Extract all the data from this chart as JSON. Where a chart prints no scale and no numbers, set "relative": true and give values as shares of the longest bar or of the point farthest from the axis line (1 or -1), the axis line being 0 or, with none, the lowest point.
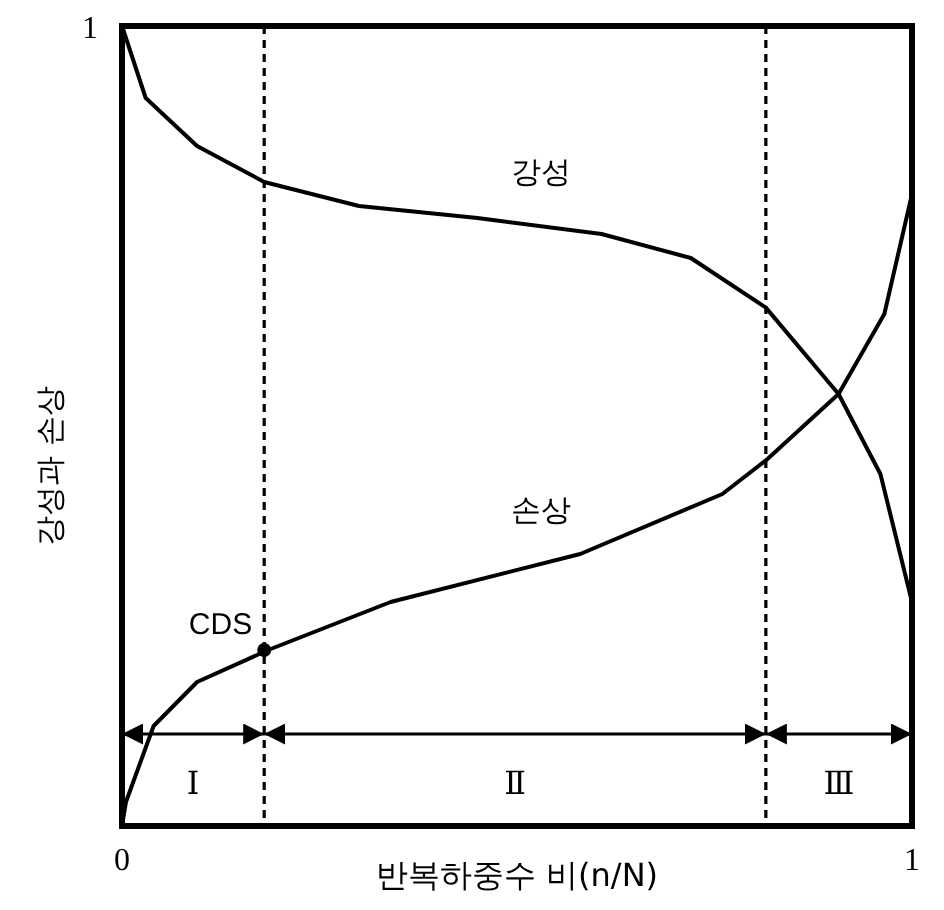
{
  "chart_data": {
    "type": "line",
    "xlabel": "반복하중수 비(n/N)",
    "ylabel": "강성과 손상",
    "xlim": [
      0,
      1
    ],
    "relative": true,
    "xticks": [
      {
        "value": 0,
        "label": "0"
      },
      {
        "value": 1,
        "label": "1"
      }
    ],
    "marker": "none",
    "line_style": "solid",
    "series": [
      {
        "name": "강성",
        "color": "#000000",
        "x": [
          0,
          0.03,
          0.095,
          0.18,
          0.3,
          0.45,
          0.607,
          0.72,
          0.815,
          0.907,
          0.96,
          1
        ],
        "values": [
          1,
          0.91,
          0.85,
          0.805,
          0.775,
          0.76,
          0.74,
          0.71,
          0.648,
          0.54,
          0.44,
          0.28
        ]
      },
      {
        "name": "손상",
        "color": "#000000",
        "x": [
          0,
          0.005,
          0.04,
          0.095,
          0.185,
          0.34,
          0.58,
          0.76,
          0.815,
          0.907,
          0.965,
          0.993,
          1
        ],
        "values": [
          0,
          0.03,
          0.125,
          0.18,
          0.22,
          0.28,
          0.34,
          0.415,
          0.457,
          0.54,
          0.64,
          0.76,
          0.79
        ]
      }
    ],
    "ref_lines": [
      {
        "axis": "x",
        "value": 0.18,
        "line_style": "dashed"
      },
      {
        "axis": "x",
        "value": 0.815,
        "line_style": "dashed"
      }
    ],
    "annotations": [
      "1",
      "Ⅰ",
      "Ⅱ",
      "Ⅲ",
      {
        "text": "CDS",
        "x": 0.18,
        "y": 0.22
      }
    ]
  }
}
